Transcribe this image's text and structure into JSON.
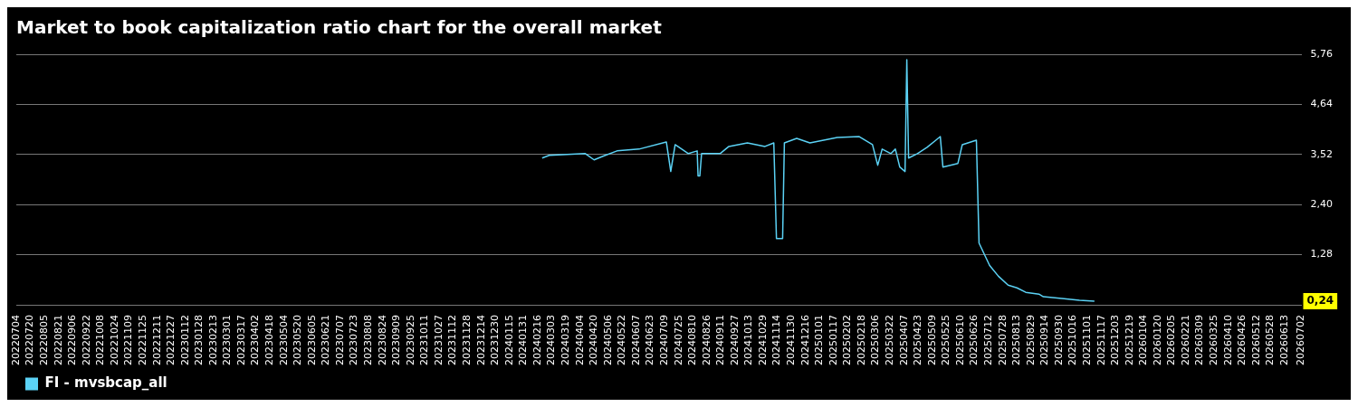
{
  "chart_data": {
    "type": "line",
    "title": "Market to book capitalization ratio chart for the overall market",
    "x": [
      "2024-02-21",
      "2024-02-29",
      "2024-04-10",
      "2024-04-20",
      "2024-04-30",
      "2024-05-16",
      "2024-06-10",
      "2024-07-11",
      "2024-07-16",
      "2024-07-21",
      "2024-08-05",
      "2024-08-15",
      "2024-08-16",
      "2024-08-18",
      "2024-08-20",
      "2024-09-10",
      "2024-09-20",
      "2024-10-11",
      "2024-10-31",
      "2024-11-10",
      "2024-11-13",
      "2024-11-20",
      "2024-11-22",
      "2024-12-06",
      "2024-12-21",
      "2025-01-21",
      "2025-02-15",
      "2025-03-02",
      "2025-03-08",
      "2025-03-13",
      "2025-03-23",
      "2025-03-28",
      "2025-04-02",
      "2025-04-08",
      "2025-04-10",
      "2025-04-12",
      "2025-04-22",
      "2025-05-03",
      "2025-05-13",
      "2025-05-18",
      "2025-05-21",
      "2025-06-07",
      "2025-06-12",
      "2025-06-28",
      "2025-07-01",
      "2025-07-13",
      "2025-07-23",
      "2025-08-03",
      "2025-08-13",
      "2025-08-23",
      "2025-09-07",
      "2025-09-12",
      "2025-10-03",
      "2025-10-23",
      "2025-11-09"
    ],
    "series": [
      {
        "name": "FI - mvsbcap_all",
        "color": "#5bd2f5",
        "values": [
          3.44,
          3.5,
          3.54,
          3.4,
          3.48,
          3.6,
          3.64,
          3.8,
          3.14,
          3.74,
          3.54,
          3.6,
          3.04,
          3.04,
          3.54,
          3.54,
          3.7,
          3.78,
          3.7,
          3.78,
          1.64,
          1.64,
          3.78,
          3.88,
          3.78,
          3.9,
          3.92,
          3.74,
          3.28,
          3.64,
          3.54,
          3.64,
          3.24,
          3.14,
          5.64,
          3.44,
          3.54,
          3.68,
          3.84,
          3.92,
          3.24,
          3.32,
          3.74,
          3.84,
          1.54,
          1.04,
          0.8,
          0.6,
          0.54,
          0.44,
          0.4,
          0.34,
          0.3,
          0.26,
          0.24
        ]
      }
    ],
    "xlim": [
      "2022-07-04",
      "2026-07-02"
    ],
    "xticks": [
      {
        "value": "2022-07-04",
        "label": "20220704"
      },
      {
        "value": "2022-07-20",
        "label": "20220720"
      },
      {
        "value": "2022-08-05",
        "label": "20220805"
      },
      {
        "value": "2022-08-21",
        "label": "20220821"
      },
      {
        "value": "2022-09-06",
        "label": "20220906"
      },
      {
        "value": "2022-09-22",
        "label": "20220922"
      },
      {
        "value": "2022-10-08",
        "label": "20221008"
      },
      {
        "value": "2022-10-24",
        "label": "20221024"
      },
      {
        "value": "2022-11-09",
        "label": "20221109"
      },
      {
        "value": "2022-11-25",
        "label": "20221125"
      },
      {
        "value": "2022-12-11",
        "label": "20221211"
      },
      {
        "value": "2022-12-27",
        "label": "20221227"
      },
      {
        "value": "2023-01-12",
        "label": "20230112"
      },
      {
        "value": "2023-01-28",
        "label": "20230128"
      },
      {
        "value": "2023-02-13",
        "label": "20230213"
      },
      {
        "value": "2023-03-01",
        "label": "20230301"
      },
      {
        "value": "2023-03-17",
        "label": "20230317"
      },
      {
        "value": "2023-04-02",
        "label": "20230402"
      },
      {
        "value": "2023-04-18",
        "label": "20230418"
      },
      {
        "value": "2023-05-04",
        "label": "20230504"
      },
      {
        "value": "2023-05-20",
        "label": "20230520"
      },
      {
        "value": "2023-06-05",
        "label": "20230605"
      },
      {
        "value": "2023-06-21",
        "label": "20230621"
      },
      {
        "value": "2023-07-07",
        "label": "20230707"
      },
      {
        "value": "2023-07-23",
        "label": "20230723"
      },
      {
        "value": "2023-08-08",
        "label": "20230808"
      },
      {
        "value": "2023-08-24",
        "label": "20230824"
      },
      {
        "value": "2023-09-09",
        "label": "20230909"
      },
      {
        "value": "2023-09-25",
        "label": "20230925"
      },
      {
        "value": "2023-10-11",
        "label": "20231011"
      },
      {
        "value": "2023-10-27",
        "label": "20231027"
      },
      {
        "value": "2023-11-12",
        "label": "20231112"
      },
      {
        "value": "2023-11-28",
        "label": "20231128"
      },
      {
        "value": "2023-12-14",
        "label": "20231214"
      },
      {
        "value": "2023-12-30",
        "label": "20231230"
      },
      {
        "value": "2024-01-15",
        "label": "20240115"
      },
      {
        "value": "2024-01-31",
        "label": "20240131"
      },
      {
        "value": "2024-02-16",
        "label": "20240216"
      },
      {
        "value": "2024-03-03",
        "label": "20240303"
      },
      {
        "value": "2024-03-19",
        "label": "20240319"
      },
      {
        "value": "2024-04-04",
        "label": "20240404"
      },
      {
        "value": "2024-04-20",
        "label": "20240420"
      },
      {
        "value": "2024-05-06",
        "label": "20240506"
      },
      {
        "value": "2024-05-22",
        "label": "20240522"
      },
      {
        "value": "2024-06-07",
        "label": "20240607"
      },
      {
        "value": "2024-06-23",
        "label": "20240623"
      },
      {
        "value": "2024-07-09",
        "label": "20240709"
      },
      {
        "value": "2024-07-25",
        "label": "20240725"
      },
      {
        "value": "2024-08-10",
        "label": "20240810"
      },
      {
        "value": "2024-08-26",
        "label": "20240826"
      },
      {
        "value": "2024-09-11",
        "label": "20240911"
      },
      {
        "value": "2024-09-27",
        "label": "20240927"
      },
      {
        "value": "2024-10-13",
        "label": "20241013"
      },
      {
        "value": "2024-10-29",
        "label": "20241029"
      },
      {
        "value": "2024-11-14",
        "label": "20241114"
      },
      {
        "value": "2024-11-30",
        "label": "20241130"
      },
      {
        "value": "2024-12-16",
        "label": "20241216"
      },
      {
        "value": "2025-01-01",
        "label": "20250101"
      },
      {
        "value": "2025-01-17",
        "label": "20250117"
      },
      {
        "value": "2025-02-02",
        "label": "20250202"
      },
      {
        "value": "2025-02-18",
        "label": "20250218"
      },
      {
        "value": "2025-03-06",
        "label": "20250306"
      },
      {
        "value": "2025-03-22",
        "label": "20250322"
      },
      {
        "value": "2025-04-07",
        "label": "20250407"
      },
      {
        "value": "2025-04-23",
        "label": "20250423"
      },
      {
        "value": "2025-05-09",
        "label": "20250509"
      },
      {
        "value": "2025-05-25",
        "label": "20250525"
      },
      {
        "value": "2025-06-10",
        "label": "20250610"
      },
      {
        "value": "2025-06-26",
        "label": "20250626"
      },
      {
        "value": "2025-07-12",
        "label": "20250712"
      },
      {
        "value": "2025-07-28",
        "label": "20250728"
      },
      {
        "value": "2025-08-13",
        "label": "20250813"
      },
      {
        "value": "2025-08-29",
        "label": "20250829"
      },
      {
        "value": "2025-09-14",
        "label": "20250914"
      },
      {
        "value": "2025-09-30",
        "label": "20250930"
      },
      {
        "value": "2025-10-16",
        "label": "20251016"
      },
      {
        "value": "2025-11-01",
        "label": "20251101"
      },
      {
        "value": "2025-11-17",
        "label": "20251117"
      },
      {
        "value": "2025-12-03",
        "label": "20251203"
      },
      {
        "value": "2025-12-19",
        "label": "20251219"
      },
      {
        "value": "2026-01-04",
        "label": "20260104"
      },
      {
        "value": "2026-01-20",
        "label": "20260120"
      },
      {
        "value": "2026-02-05",
        "label": "20260205"
      },
      {
        "value": "2026-02-21",
        "label": "20260221"
      },
      {
        "value": "2026-03-09",
        "label": "20260309"
      },
      {
        "value": "2026-03-25",
        "label": "20260325"
      },
      {
        "value": "2026-04-10",
        "label": "20260410"
      },
      {
        "value": "2026-04-26",
        "label": "20260426"
      },
      {
        "value": "2026-05-12",
        "label": "20260512"
      },
      {
        "value": "2026-05-28",
        "label": "20260528"
      },
      {
        "value": "2026-06-13",
        "label": "20260613"
      },
      {
        "value": "2026-07-02",
        "label": "20260702"
      }
    ],
    "ylim": [
      0.16,
      5.76
    ],
    "yticks": [
      {
        "value": 0.16,
        "label": null
      },
      {
        "value": 1.28,
        "label": "1,28"
      },
      {
        "value": 2.4,
        "label": "2,40"
      },
      {
        "value": 3.52,
        "label": "3,52"
      },
      {
        "value": 4.64,
        "label": "4,64"
      },
      {
        "value": 5.76,
        "label": "5,76"
      }
    ],
    "annotations": [
      "0,24"
    ],
    "grid": "y",
    "legend": "bottom left",
    "marker": "none",
    "line_style": "solid"
  }
}
